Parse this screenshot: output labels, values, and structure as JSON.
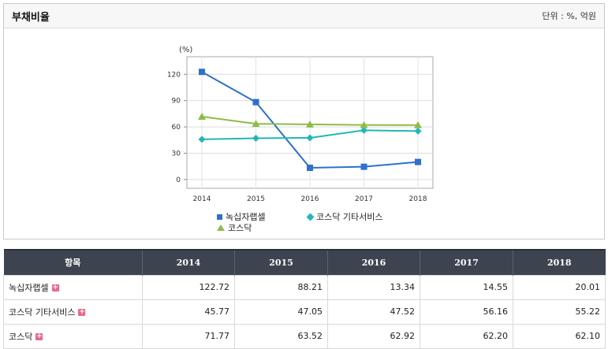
{
  "header": {
    "title": "부채비율",
    "unit": "단위 : %, 억원"
  },
  "chart_data": {
    "type": "line",
    "y_unit": "(%)",
    "categories": [
      "2014",
      "2015",
      "2016",
      "2017",
      "2018"
    ],
    "ylim": [
      -10,
      140
    ],
    "yticks": [
      0,
      30,
      60,
      90,
      120
    ],
    "grid": true,
    "legend_position": "bottom",
    "series": [
      {
        "name": "녹십자랩셀",
        "values": [
          122.72,
          88.21,
          13.34,
          14.55,
          20.01
        ],
        "color": "#2f6fce",
        "marker": "square"
      },
      {
        "name": "코스닥 기타서비스",
        "values": [
          45.77,
          47.05,
          47.52,
          56.16,
          55.22
        ],
        "color": "#22b7b7",
        "marker": "diamond"
      },
      {
        "name": "코스닥",
        "values": [
          71.77,
          63.52,
          62.92,
          62.2,
          62.1
        ],
        "color": "#8fbb4a",
        "marker": "triangle"
      }
    ]
  },
  "table": {
    "header_label": "항목",
    "years": [
      "2014",
      "2015",
      "2016",
      "2017",
      "2018"
    ],
    "rows": [
      {
        "label": "녹십자랩셀",
        "values": [
          "122.72",
          "88.21",
          "13.34",
          "14.55",
          "20.01"
        ]
      },
      {
        "label": "코스닥 기타서비스",
        "values": [
          "45.77",
          "47.05",
          "47.52",
          "56.16",
          "55.22"
        ]
      },
      {
        "label": "코스닥",
        "values": [
          "71.77",
          "63.52",
          "62.92",
          "62.20",
          "62.10"
        ]
      }
    ],
    "expand_icon": "+"
  }
}
